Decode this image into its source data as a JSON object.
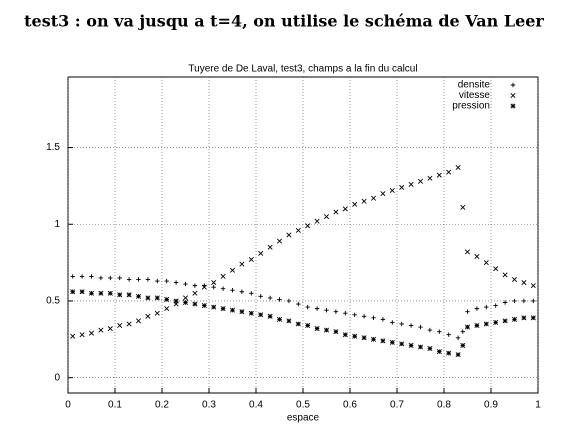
{
  "heading": "test3 : on va jusqu a t=4, on utilise le schéma de Van Leer",
  "chart_data": {
    "type": "scatter",
    "title": "Tuyere de De Laval, test3, champs a la fin du calcul",
    "x_label": "espace",
    "x": [
      0.01,
      0.03,
      0.05,
      0.07,
      0.09,
      0.11,
      0.13,
      0.15,
      0.17,
      0.19,
      0.21,
      0.23,
      0.25,
      0.27,
      0.29,
      0.31,
      0.33,
      0.35,
      0.37,
      0.39,
      0.41,
      0.43,
      0.45,
      0.47,
      0.49,
      0.51,
      0.53,
      0.55,
      0.57,
      0.59,
      0.61,
      0.63,
      0.65,
      0.67,
      0.69,
      0.71,
      0.73,
      0.75,
      0.77,
      0.79,
      0.81,
      0.83,
      0.84,
      0.85,
      0.87,
      0.89,
      0.91,
      0.93,
      0.95,
      0.97,
      0.99
    ],
    "series": [
      {
        "name": "densite",
        "color": "#000000",
        "marker": "plus",
        "values": [
          0.66,
          0.66,
          0.66,
          0.65,
          0.65,
          0.65,
          0.64,
          0.64,
          0.64,
          0.63,
          0.63,
          0.62,
          0.61,
          0.6,
          0.6,
          0.59,
          0.58,
          0.57,
          0.56,
          0.55,
          0.53,
          0.52,
          0.51,
          0.5,
          0.48,
          0.46,
          0.45,
          0.44,
          0.43,
          0.42,
          0.41,
          0.4,
          0.39,
          0.38,
          0.36,
          0.35,
          0.34,
          0.33,
          0.31,
          0.3,
          0.28,
          0.26,
          0.3,
          0.43,
          0.45,
          0.46,
          0.47,
          0.49,
          0.5,
          0.5,
          0.5
        ]
      },
      {
        "name": "vitesse",
        "color": "#000000",
        "marker": "cross",
        "values": [
          0.27,
          0.28,
          0.29,
          0.31,
          0.32,
          0.34,
          0.35,
          0.37,
          0.4,
          0.42,
          0.45,
          0.48,
          0.52,
          0.55,
          0.59,
          0.62,
          0.66,
          0.7,
          0.74,
          0.77,
          0.81,
          0.85,
          0.89,
          0.93,
          0.96,
          0.99,
          1.02,
          1.05,
          1.08,
          1.1,
          1.13,
          1.15,
          1.17,
          1.2,
          1.22,
          1.24,
          1.26,
          1.28,
          1.3,
          1.32,
          1.34,
          1.37,
          1.11,
          0.82,
          0.79,
          0.75,
          0.71,
          0.67,
          0.64,
          0.62,
          0.6
        ]
      },
      {
        "name": "pression",
        "color": "#000000",
        "marker": "star",
        "values": [
          0.56,
          0.56,
          0.55,
          0.55,
          0.55,
          0.54,
          0.54,
          0.53,
          0.52,
          0.52,
          0.51,
          0.5,
          0.49,
          0.48,
          0.47,
          0.46,
          0.45,
          0.44,
          0.43,
          0.42,
          0.41,
          0.4,
          0.38,
          0.37,
          0.35,
          0.34,
          0.32,
          0.31,
          0.3,
          0.28,
          0.27,
          0.26,
          0.25,
          0.24,
          0.23,
          0.22,
          0.21,
          0.2,
          0.19,
          0.17,
          0.16,
          0.15,
          0.21,
          0.33,
          0.34,
          0.35,
          0.36,
          0.37,
          0.38,
          0.39,
          0.39
        ]
      }
    ],
    "xlim": [
      0,
      1
    ],
    "xticks": [
      0,
      0.1,
      0.2,
      0.3,
      0.4,
      0.5,
      0.6,
      0.7,
      0.8,
      0.9,
      1
    ],
    "ylim": [
      -0.1,
      1.96
    ],
    "yticks": [
      0,
      0.5,
      1,
      1.5
    ],
    "grid": true,
    "legend": "top-right"
  }
}
